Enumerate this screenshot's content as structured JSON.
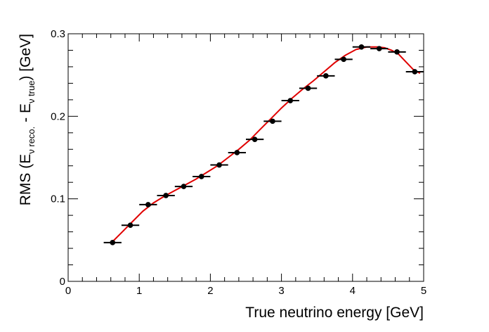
{
  "chart_data": {
    "type": "scatter",
    "title": "",
    "xlabel": "True neutrino energy [GeV]",
    "ylabel": {
      "prefix": "RMS (E",
      "sub1": "ν reco.",
      "mid": " - E",
      "sub2": "ν true",
      "suffix": ") [GeV]"
    },
    "xlim": [
      0,
      5
    ],
    "ylim": [
      0,
      0.3
    ],
    "x_ticks": [
      "0",
      "1",
      "2",
      "3",
      "4",
      "5"
    ],
    "y_ticks": [
      "0",
      "0.1",
      "0.2",
      "0.3"
    ],
    "x_error": 0.125,
    "grid": false,
    "legend": "none",
    "series": [
      {
        "style": "markers-with-x-error",
        "color": "#000000",
        "x": [
          0.625,
          0.875,
          1.125,
          1.375,
          1.625,
          1.875,
          2.125,
          2.375,
          2.625,
          2.875,
          3.125,
          3.375,
          3.625,
          3.875,
          4.125,
          4.375,
          4.625,
          4.875
        ],
        "y": [
          0.047,
          0.068,
          0.093,
          0.104,
          0.115,
          0.127,
          0.141,
          0.156,
          0.172,
          0.194,
          0.219,
          0.234,
          0.249,
          0.269,
          0.284,
          0.282,
          0.278,
          0.254
        ]
      },
      {
        "style": "fit-curve",
        "color": "#e00000",
        "x": [
          0.6,
          0.75,
          0.9,
          1.05,
          1.2,
          1.35,
          1.5,
          1.65,
          1.8,
          1.95,
          2.1,
          2.25,
          2.4,
          2.55,
          2.7,
          2.85,
          3.0,
          3.15,
          3.3,
          3.45,
          3.6,
          3.75,
          3.9,
          4.05,
          4.2,
          4.35,
          4.45,
          4.55,
          4.65,
          4.75,
          4.85,
          4.95
        ],
        "y": [
          0.046,
          0.059,
          0.072,
          0.085,
          0.095,
          0.103,
          0.11,
          0.117,
          0.124,
          0.132,
          0.14,
          0.15,
          0.16,
          0.171,
          0.184,
          0.197,
          0.21,
          0.222,
          0.233,
          0.243,
          0.254,
          0.265,
          0.274,
          0.281,
          0.284,
          0.284,
          0.283,
          0.28,
          0.275,
          0.266,
          0.257,
          0.252
        ]
      }
    ]
  }
}
